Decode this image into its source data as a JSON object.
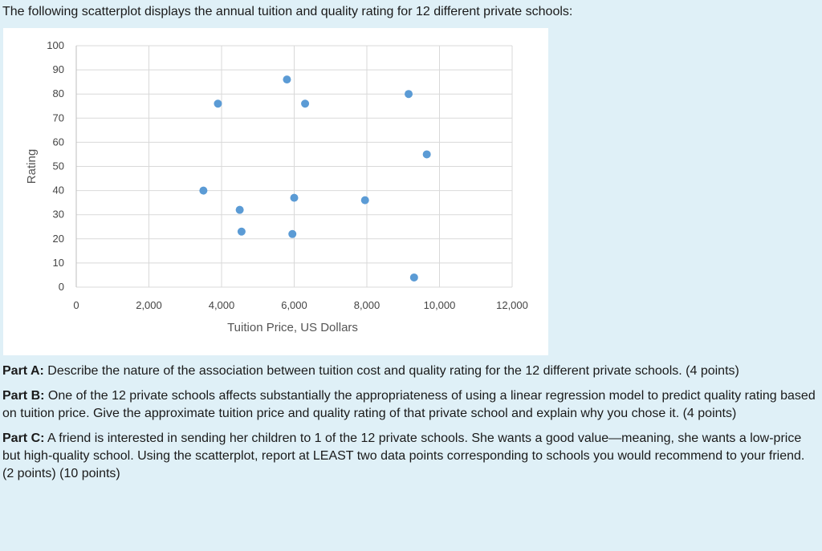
{
  "intro": "The following scatterplot displays the annual tuition and quality rating for 12 different private schools:",
  "chart_data": {
    "type": "scatter",
    "title": "",
    "xlabel": "Tuition Price, US Dollars",
    "ylabel": "Rating",
    "xlim": [
      0,
      12000
    ],
    "ylim": [
      0,
      100
    ],
    "x_ticks": [
      0,
      2000,
      4000,
      6000,
      8000,
      10000,
      12000
    ],
    "x_tick_labels": [
      "0",
      "2,000",
      "4,000",
      "6,000",
      "8,000",
      "10,000",
      "12,000"
    ],
    "y_ticks": [
      0,
      10,
      20,
      30,
      40,
      50,
      60,
      70,
      80,
      90,
      100
    ],
    "y_tick_labels": [
      "0",
      "10",
      "20",
      "30",
      "40",
      "50",
      "60",
      "70",
      "80",
      "90",
      "100"
    ],
    "grid": true,
    "marker_color": "#5b9bd5",
    "points": [
      {
        "x": 3500,
        "y": 40
      },
      {
        "x": 3900,
        "y": 76
      },
      {
        "x": 4500,
        "y": 32
      },
      {
        "x": 4550,
        "y": 23
      },
      {
        "x": 5800,
        "y": 86
      },
      {
        "x": 6000,
        "y": 37
      },
      {
        "x": 5950,
        "y": 22
      },
      {
        "x": 6300,
        "y": 76
      },
      {
        "x": 7950,
        "y": 36
      },
      {
        "x": 9150,
        "y": 80
      },
      {
        "x": 9300,
        "y": 4
      },
      {
        "x": 9650,
        "y": 55
      }
    ]
  },
  "questions": [
    {
      "label": "Part A:",
      "text": " Describe the nature of the association between tuition cost and quality rating for the 12 different private schools. (4 points)"
    },
    {
      "label": "Part B:",
      "text": " One of the 12 private schools affects substantially the appropriateness of using a linear regression model to predict quality rating based on tuition price. Give the approximate tuition price and quality rating of that private school and explain why you chose it. (4 points)"
    },
    {
      "label": "Part C:",
      "text": " A friend is interested in sending her children to 1 of the 12 private schools. She wants a good value—meaning, she wants a low-price but high-quality school. Using the scatterplot, report at LEAST two data points corresponding to schools you would recommend to your friend. (2 points) (10 points)"
    }
  ]
}
